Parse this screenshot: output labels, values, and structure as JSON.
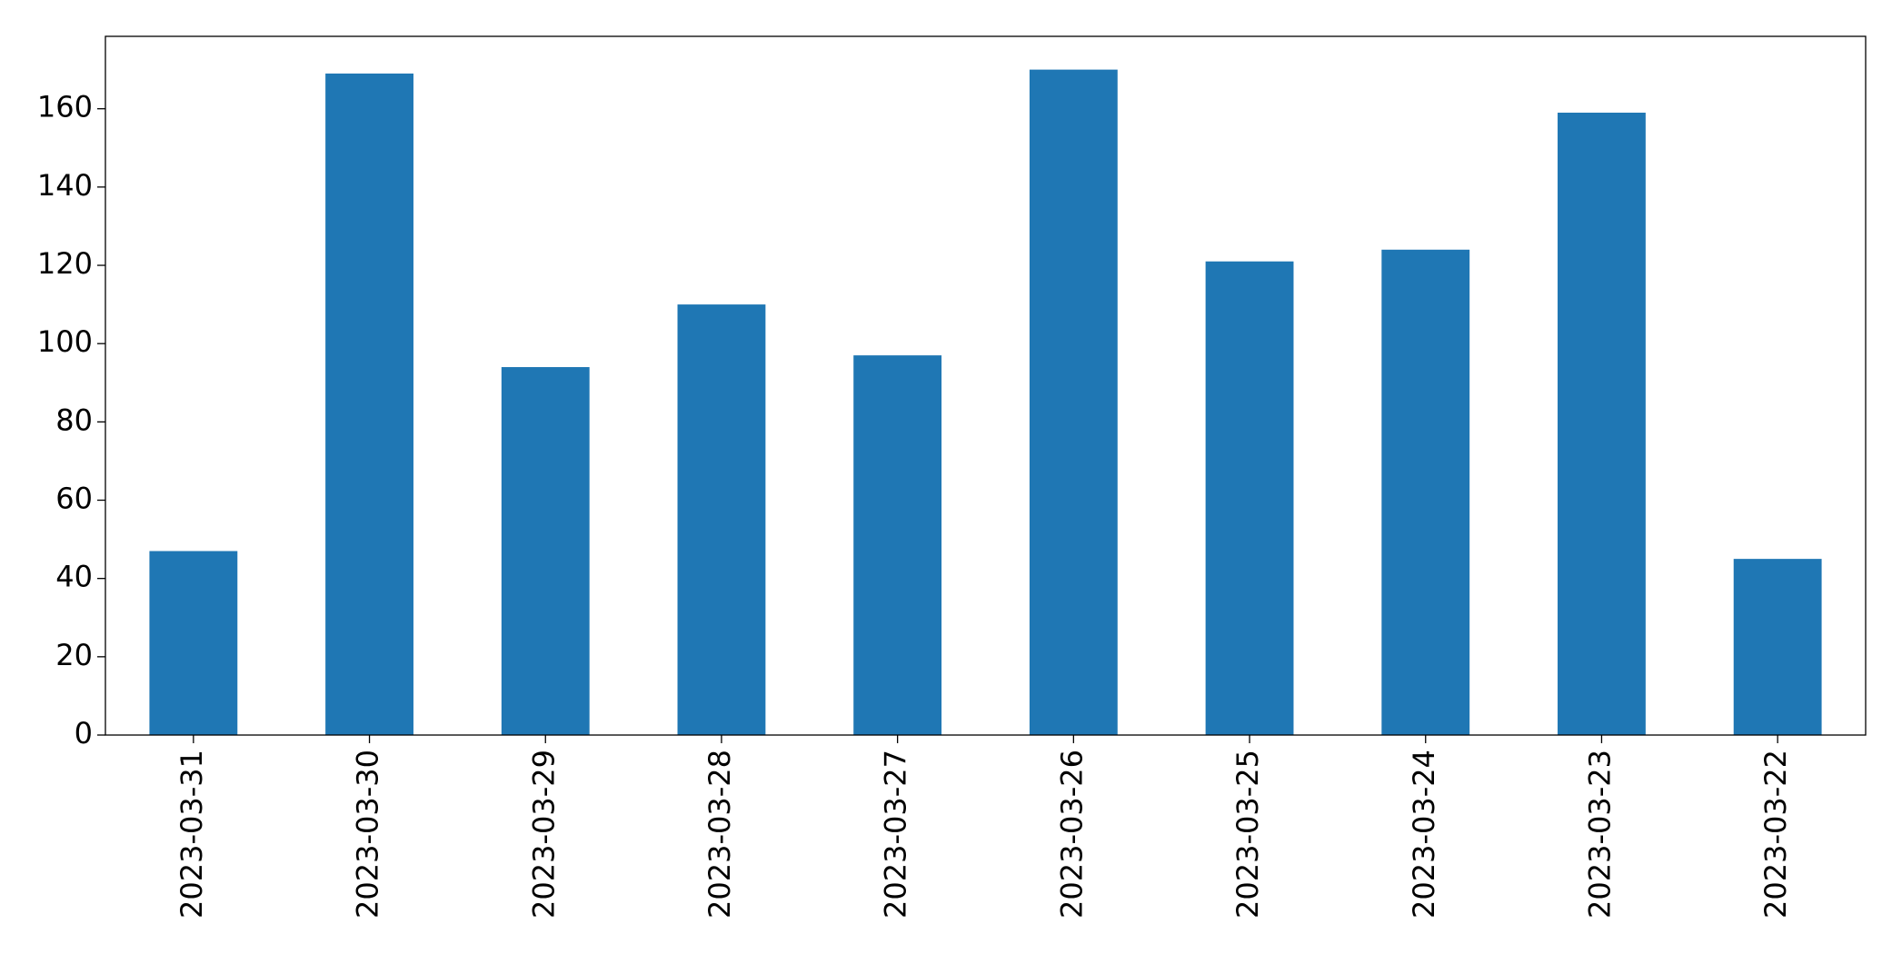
{
  "chart_data": {
    "type": "bar",
    "categories": [
      "2023-03-31",
      "2023-03-30",
      "2023-03-29",
      "2023-03-28",
      "2023-03-27",
      "2023-03-26",
      "2023-03-25",
      "2023-03-24",
      "2023-03-23",
      "2023-03-22"
    ],
    "values": [
      47,
      169,
      94,
      110,
      97,
      170,
      121,
      124,
      159,
      45
    ],
    "color": "#1f77b4",
    "ylim": [
      0,
      178.5
    ],
    "yticks": [
      0,
      20,
      40,
      60,
      80,
      100,
      120,
      140,
      160
    ],
    "grid": false
  }
}
